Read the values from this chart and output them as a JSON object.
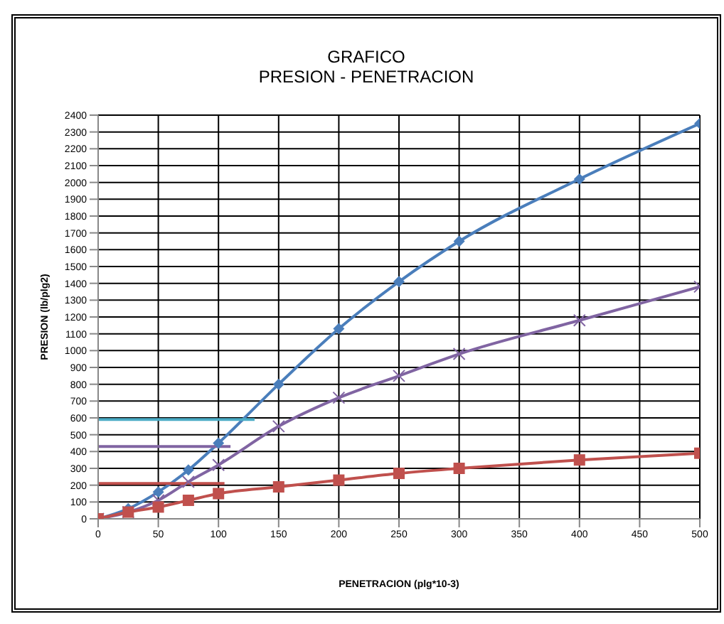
{
  "chart_data": {
    "type": "line",
    "title": "GRAFICO",
    "subtitle": "PRESION  - PENETRACION",
    "xlabel": "PENETRACION (plg*10-3)",
    "ylabel": "PRESION (lb/plg2)",
    "xlim": [
      0,
      500
    ],
    "xticks": [
      0,
      50,
      100,
      150,
      200,
      250,
      300,
      350,
      400,
      450,
      500
    ],
    "ylim": [
      0,
      2400
    ],
    "yticks": [
      0,
      100,
      200,
      300,
      400,
      500,
      600,
      700,
      800,
      900,
      1000,
      1100,
      1200,
      1300,
      1400,
      1500,
      1600,
      1700,
      1800,
      1900,
      2000,
      2100,
      2200,
      2300,
      2400
    ],
    "grid": true,
    "line_style": "solid",
    "series": [
      {
        "color": "#4a7ebb",
        "marker": "diamond",
        "x": [
          0,
          25,
          50,
          75,
          100,
          150,
          200,
          250,
          300,
          400,
          500
        ],
        "values": [
          0,
          60,
          160,
          290,
          450,
          800,
          1130,
          1410,
          1650,
          2020,
          2350
        ]
      },
      {
        "color": "#8064a2",
        "marker": "cross",
        "x": [
          0,
          25,
          50,
          75,
          100,
          150,
          200,
          250,
          300,
          400,
          500
        ],
        "values": [
          0,
          40,
          110,
          220,
          320,
          550,
          720,
          850,
          980,
          1180,
          1380
        ]
      },
      {
        "color": "#c0504d",
        "marker": "square",
        "x": [
          0,
          25,
          50,
          75,
          100,
          150,
          200,
          250,
          300,
          400,
          500
        ],
        "values": [
          0,
          40,
          70,
          110,
          150,
          190,
          230,
          270,
          300,
          350,
          390
        ]
      },
      {
        "color": "#4bacc6",
        "marker": "none",
        "x": [
          0,
          130
        ],
        "values": [
          590,
          590
        ]
      },
      {
        "color": "#8064a2",
        "marker": "none",
        "x": [
          0,
          110
        ],
        "values": [
          430,
          430
        ]
      },
      {
        "color": "#c0504d",
        "marker": "none",
        "x": [
          0,
          105
        ],
        "values": [
          210,
          210
        ]
      }
    ]
  }
}
